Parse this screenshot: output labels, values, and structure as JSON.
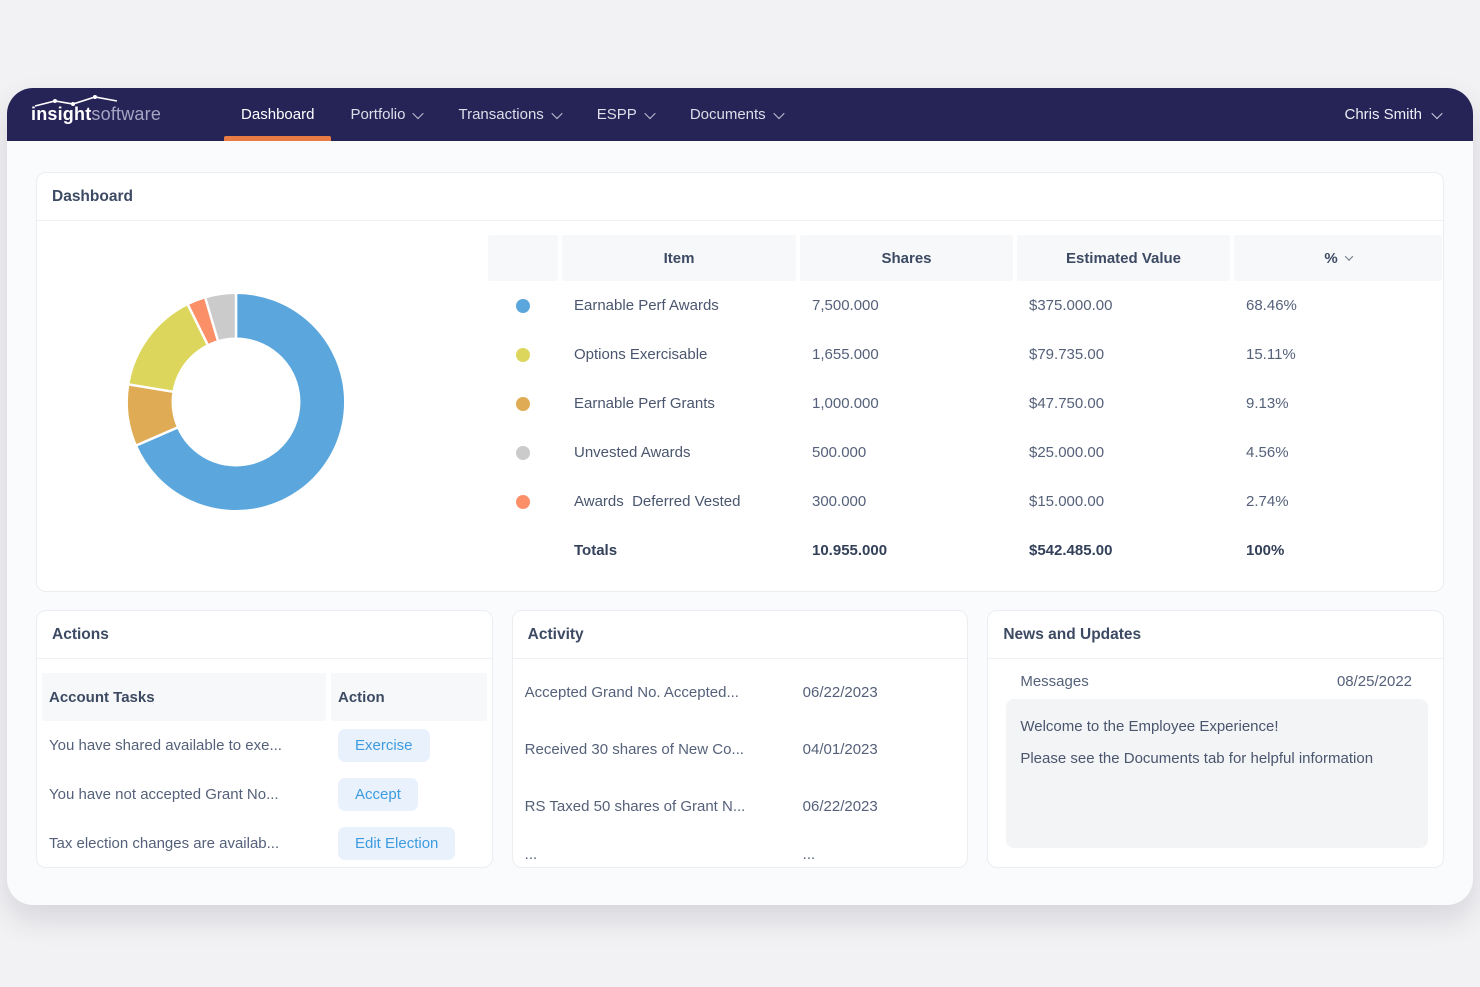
{
  "brand": {
    "name_bold": "insight",
    "name_light": "software"
  },
  "nav": {
    "items": [
      {
        "label": "Dashboard"
      },
      {
        "label": "Portfolio"
      },
      {
        "label": "Transactions"
      },
      {
        "label": "ESPP"
      },
      {
        "label": "Documents"
      }
    ],
    "user": {
      "name": "Chris Smith"
    }
  },
  "dashboard": {
    "title": "Dashboard",
    "table": {
      "headers": {
        "item": "Item",
        "shares": "Shares",
        "value": "Estimated Value",
        "pct": "%"
      },
      "rows": [
        {
          "item": "Earnable Perf Awards",
          "shares": "7,500.000",
          "value": "$375.000.00",
          "pct": "68.46%"
        },
        {
          "item": "Options Exercisable",
          "shares": "1,655.000",
          "value": "$79.735.00",
          "pct": "15.11%"
        },
        {
          "item": "Earnable Perf Grants",
          "shares": "1,000.000",
          "value": "$47.750.00",
          "pct": "9.13%"
        },
        {
          "item": "Unvested Awards",
          "shares": "500.000",
          "value": "$25.000.00",
          "pct": "4.56%"
        },
        {
          "item": "Awards  Deferred Vested",
          "shares": "300.000",
          "value": "$15.000.00",
          "pct": "2.74%"
        }
      ],
      "totals": {
        "label": "Totals",
        "shares": "10.955.000",
        "value": "$542.485.00",
        "pct": "100%"
      }
    }
  },
  "chart_data": {
    "type": "pie",
    "title": "Holdings breakdown donut",
    "donut": true,
    "start_angle_deg": 0,
    "clockwise": true,
    "legend_position": "table-right",
    "slices": [
      {
        "label": "Earnable Perf Awards",
        "pct": 68.46,
        "color": "#5BA7DD"
      },
      {
        "label": "Options Exercisable",
        "pct": 15.11,
        "color": "#DCD75C"
      },
      {
        "label": "Earnable Perf Grants",
        "pct": 9.13,
        "color": "#DFAC55"
      },
      {
        "label": "Unvested Awards",
        "pct": 4.56,
        "color": "#CBCBCB"
      },
      {
        "label": "Awards Deferred Vested",
        "pct": 2.74,
        "color": "#FB8F68"
      }
    ],
    "render_order": [
      0,
      2,
      1,
      4,
      3
    ],
    "gap_color": "#ffffff"
  },
  "actions": {
    "title": "Actions",
    "headers": {
      "tasks": "Account Tasks",
      "action": "Action"
    },
    "rows": [
      {
        "task": "You have shared available to exe...",
        "button": "Exercise"
      },
      {
        "task": "You have not accepted Grant No...",
        "button": "Accept"
      },
      {
        "task": "Tax election changes are availab...",
        "button": "Edit Election"
      }
    ]
  },
  "activity": {
    "title": "Activity",
    "rows": [
      {
        "text": "Accepted Grand No. Accepted...",
        "date": "06/22/2023"
      },
      {
        "text": "Received 30 shares of New Co...",
        "date": "04/01/2023"
      },
      {
        "text": "RS Taxed 50 shares of Grant N...",
        "date": "06/22/2023"
      },
      {
        "text": "...",
        "date": "..."
      }
    ]
  },
  "news": {
    "title": "News and Updates",
    "label": "Messages",
    "date": "08/25/2022",
    "message_line1": "Welcome to the Employee Experience!",
    "message_line2": "Please see the Documents tab for helpful information"
  },
  "colors": {
    "navbar": "#262357",
    "active_tab_underline": "#E87C44",
    "button_bg": "#E9F2FC",
    "button_text": "#3D9BE0",
    "page_bg": "#F2F2F4"
  }
}
